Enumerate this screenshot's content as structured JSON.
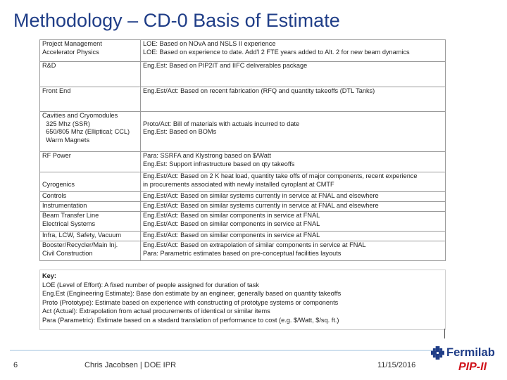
{
  "title": "Methodology – CD-0 Basis of Estimate",
  "table": {
    "rows": [
      {
        "left": [
          "Project Management",
          "Accelerator Physics"
        ],
        "right": [
          "LOE: Based on NOvA and NSLS II experience",
          "LOE: Based on experience to date. Add'l 2 FTE years added to Alt. 2 for new beam dynamics"
        ],
        "height": 31
      },
      {
        "left": [
          "R&D",
          "",
          ""
        ],
        "right": [
          "Eng.Est: Based on PIP2IT and IIFC deliverables package",
          "",
          ""
        ],
        "height": 35
      },
      {
        "left": [
          "Front End",
          "",
          ""
        ],
        "right": [
          "Eng.Est/Act: Based on recent fabrication (RFQ and quantity takeoffs (DTL Tanks)",
          "",
          ""
        ],
        "height": 33
      },
      {
        "left": [
          "Cavities and Cryomodules",
          "  325 Mhz (SSR)",
          "  650/805 Mhz (Elliptical; CCL)",
          "  Warm Magnets"
        ],
        "right": [
          "",
          "Proto/Act: Bill of materials with actuals incurred to date",
          "Eng.Est: Based on BOMs",
          ""
        ],
        "height": 57
      },
      {
        "left": [
          "RF Power",
          ""
        ],
        "right": [
          "Para: SSRFA and Klystrong based on $/Watt",
          "Eng.Est: Support infrastructure based on qty takeoffs"
        ],
        "height": 29
      },
      {
        "left": [
          "",
          "Cyrogenics"
        ],
        "right": [
          "Eng.Est/Act: Based on 2 K heat load, quantity take offs of major components, recent experience",
          "in procurements associated with newly installed cyroplant at CMTF"
        ],
        "height": 28
      },
      {
        "left": [
          "Controls"
        ],
        "right": [
          "Eng.Est/Act: Based on similar systems currently in service at FNAL and elsewhere"
        ],
        "height": 14
      },
      {
        "left": [
          "Instrumentation"
        ],
        "right": [
          "Eng.Est/Act: Based on similar systems currently in service at FNAL and elsewhere"
        ],
        "height": 14
      },
      {
        "left": [
          "Beam Transfer Line",
          "Electrical Systems"
        ],
        "right": [
          "Eng.Est/Act: Based on similar components in service at FNAL",
          "Eng.Est/Act: Based on similar components in service at FNAL"
        ],
        "height": 28
      },
      {
        "left": [
          "Infra, LCW, Safety, Vacuum"
        ],
        "right": [
          "Eng.Est/Act: Based on similar components in service at FNAL"
        ],
        "height": 14
      },
      {
        "left": [
          "Booster/Recycler/Main Inj.",
          "Civil Construction"
        ],
        "right": [
          "Eng.Est/Act: Based on extrapolation of similar components in service at FNAL",
          "Para: Parametric estimates based on pre-conceptual facilities layouts"
        ],
        "height": 28
      }
    ]
  },
  "key": {
    "heading": "Key:",
    "lines": [
      "LOE (Level of Effort): A fixed number of people assigned for duration of task",
      "Eng.Est (Engineering Estimate): Base don estimate by an engineer, generally based on quantity takeoffs",
      "Proto (Prototype): Estimate based on experience with constructing of prototype systems or components",
      "Act (Actual): Extrapolation from actual procurements of identical or similar items",
      "Para (Parametric): Estimate based on a stadard translation of performance to cost (e.g. $/Watt, $/sq. ft.)"
    ]
  },
  "footer": {
    "page_number": "6",
    "center": "Chris Jacobsen | DOE IPR",
    "date": "11/15/2016",
    "logo_text": "Fermilab",
    "program": "PIP-II",
    "logo_icon": "fermilab-logo-icon",
    "colors": {
      "title": "#1f3d87",
      "program": "#d0121b"
    }
  }
}
